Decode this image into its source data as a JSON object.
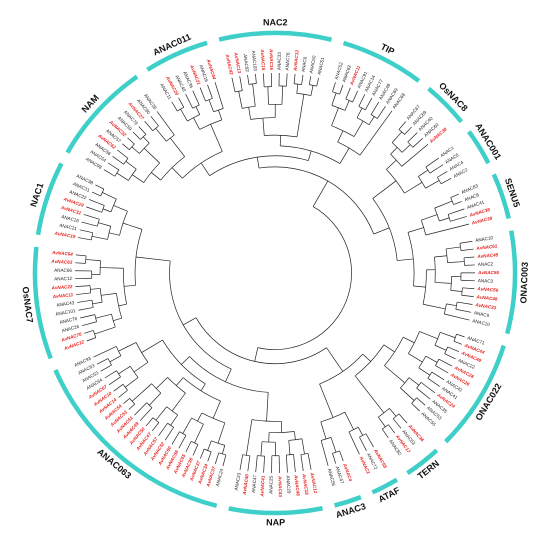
{
  "colors": {
    "background": "#ffffff",
    "branch": "#222222",
    "clade_arc": "#3ecfc8",
    "label_default": "#222222",
    "label_highlight": "#e8231f",
    "clade_text": "#111111"
  },
  "tree": {
    "clades": [
      {
        "name": "NAM",
        "tips": [
          {
            "label": "ANAC98",
            "highlight": false
          },
          {
            "label": "ANAC54",
            "highlight": false
          },
          {
            "label": "ANAC56",
            "highlight": false
          },
          {
            "label": "AvNAC62",
            "highlight": true
          },
          {
            "label": "ANAC57",
            "highlight": false
          },
          {
            "label": "AvNAC32",
            "highlight": true
          },
          {
            "label": "ANAC59",
            "highlight": false
          },
          {
            "label": "ANAC79",
            "highlight": false
          },
          {
            "label": "AvNAC27",
            "highlight": true
          },
          {
            "label": "ANAC80",
            "highlight": false
          },
          {
            "label": "ANAC28",
            "highlight": false
          }
        ]
      },
      {
        "name": "ANAC011",
        "tips": [
          {
            "label": "ANAC11",
            "highlight": false
          },
          {
            "label": "AvNAC20",
            "highlight": true
          },
          {
            "label": "ANAC48",
            "highlight": false
          },
          {
            "label": "ANAC36",
            "highlight": false
          },
          {
            "label": "AvNAC21",
            "highlight": true
          },
          {
            "label": "ANAC16",
            "highlight": false
          },
          {
            "label": "AvNAC44",
            "highlight": true
          }
        ]
      },
      {
        "name": "NAC2",
        "tips": [
          {
            "label": "AvNAC42",
            "highlight": true
          },
          {
            "label": "AvNAC13",
            "highlight": true
          },
          {
            "label": "ANAC92",
            "highlight": false
          },
          {
            "label": "ANAC103",
            "highlight": false
          },
          {
            "label": "AvNAC15",
            "highlight": true
          },
          {
            "label": "AvNAC16",
            "highlight": true
          },
          {
            "label": "ANAC33",
            "highlight": false
          },
          {
            "label": "ANAC78",
            "highlight": false
          },
          {
            "label": "AvNAC13",
            "highlight": true
          },
          {
            "label": "ANAC6",
            "highlight": false
          },
          {
            "label": "ANAC50",
            "highlight": false
          },
          {
            "label": "ANAC51",
            "highlight": false
          }
        ]
      },
      {
        "name": "TIP",
        "tips": [
          {
            "label": "ANAC52",
            "highlight": false
          },
          {
            "label": "ANAC62",
            "highlight": false
          },
          {
            "label": "AvNAC11",
            "highlight": true
          },
          {
            "label": "ANAC91",
            "highlight": false
          },
          {
            "label": "ANAC14",
            "highlight": false
          },
          {
            "label": "ANAC77",
            "highlight": false
          },
          {
            "label": "ANAC49",
            "highlight": false
          },
          {
            "label": "ANAC69",
            "highlight": false
          },
          {
            "label": "ANAC68",
            "highlight": false
          }
        ]
      },
      {
        "name": "OsNAC8",
        "tips": [
          {
            "label": "ANAC67",
            "highlight": false
          },
          {
            "label": "ANAC89",
            "highlight": false
          },
          {
            "label": "ANAC40",
            "highlight": false
          },
          {
            "label": "ANAC60",
            "highlight": false
          },
          {
            "label": "AvNAC30",
            "highlight": true
          }
        ]
      },
      {
        "name": "ANAC001",
        "tips": [
          {
            "label": "ANAC1",
            "highlight": false
          },
          {
            "label": "ANAC5",
            "highlight": false
          },
          {
            "label": "ANAC4",
            "highlight": false
          },
          {
            "label": "ANAC2",
            "highlight": false
          }
        ]
      },
      {
        "name": "SENU5",
        "tips": [
          {
            "label": "ANAC83",
            "highlight": false
          },
          {
            "label": "ANAC8",
            "highlight": false
          },
          {
            "label": "ANAC41",
            "highlight": false
          },
          {
            "label": "AvNAC38",
            "highlight": true
          },
          {
            "label": "AvNAC39",
            "highlight": true
          }
        ]
      },
      {
        "name": "ONAC003",
        "tips": [
          {
            "label": "ANAC10",
            "highlight": false
          },
          {
            "label": "AvNAC61",
            "highlight": true
          },
          {
            "label": "AvNAC45",
            "highlight": true
          },
          {
            "label": "ANAC2",
            "highlight": false
          },
          {
            "label": "AvNAC55",
            "highlight": true
          },
          {
            "label": "ANAC3",
            "highlight": false
          },
          {
            "label": "AvNAC56",
            "highlight": true
          },
          {
            "label": "AvNAC48",
            "highlight": true
          },
          {
            "label": "AvNAC33",
            "highlight": true
          },
          {
            "label": "ANAC9",
            "highlight": false
          },
          {
            "label": "ANAC10",
            "highlight": false
          }
        ]
      },
      {
        "name": "ONAC022",
        "tips": [
          {
            "label": "ANAC71",
            "highlight": false
          },
          {
            "label": "AvNAC44",
            "highlight": true
          },
          {
            "label": "AvNAC49",
            "highlight": true
          },
          {
            "label": "ANAC22",
            "highlight": false
          },
          {
            "label": "AvNAC28",
            "highlight": true
          },
          {
            "label": "AvNAC26",
            "highlight": true
          },
          {
            "label": "ANAC42",
            "highlight": false
          },
          {
            "label": "ANAC41",
            "highlight": false
          },
          {
            "label": "AvNAC24",
            "highlight": true
          },
          {
            "label": "ANAC35",
            "highlight": false
          },
          {
            "label": "ANAC53",
            "highlight": false
          },
          {
            "label": "ANAC55",
            "highlight": false
          }
        ]
      },
      {
        "name": "TERN",
        "tips": [
          {
            "label": "AvNAC36",
            "highlight": true
          },
          {
            "label": "ANAC53",
            "highlight": false
          },
          {
            "label": "AvNAC17",
            "highlight": true
          },
          {
            "label": "ANAC82",
            "highlight": false
          }
        ]
      },
      {
        "name": "ATAF",
        "tips": [
          {
            "label": "AvNAC58",
            "highlight": true
          },
          {
            "label": "ANAC72",
            "highlight": false
          },
          {
            "label": "AvNAC2",
            "highlight": true
          }
        ]
      },
      {
        "name": "ANAC3",
        "tips": [
          {
            "label": "AvNAC4",
            "highlight": true
          },
          {
            "label": "ANAC47",
            "highlight": false
          },
          {
            "label": "ANAC56",
            "highlight": false
          }
        ]
      },
      {
        "name": "NAP",
        "tips": [
          {
            "label": "AvNAC12",
            "highlight": true
          },
          {
            "label": "AvNAC18",
            "highlight": true
          },
          {
            "label": "AvNAC46",
            "highlight": true
          },
          {
            "label": "ANAC29",
            "highlight": false
          },
          {
            "label": "AvNAC43",
            "highlight": true
          },
          {
            "label": "ANAC25",
            "highlight": false
          },
          {
            "label": "AvNAC41",
            "highlight": true
          },
          {
            "label": "ANAC47",
            "highlight": false
          },
          {
            "label": "AvNAC40",
            "highlight": true
          },
          {
            "label": "ANAC23",
            "highlight": false
          }
        ]
      },
      {
        "name": "ANAC063",
        "tips": [
          {
            "label": "ANAC24",
            "highlight": false
          },
          {
            "label": "AvNAC37",
            "highlight": true
          },
          {
            "label": "AvNAC34",
            "highlight": true
          },
          {
            "label": "AvNAC37",
            "highlight": true
          },
          {
            "label": "AvNAC36",
            "highlight": true
          },
          {
            "label": "AvNAC55",
            "highlight": true
          },
          {
            "label": "AvNAC59",
            "highlight": true
          },
          {
            "label": "AvNAC60",
            "highlight": true
          },
          {
            "label": "AvNAC52",
            "highlight": true
          },
          {
            "label": "AvNAC57",
            "highlight": true
          },
          {
            "label": "AvNAC47",
            "highlight": true
          },
          {
            "label": "AvNAC50",
            "highlight": true
          },
          {
            "label": "AvNAC49",
            "highlight": true
          },
          {
            "label": "AvNAC51",
            "highlight": true
          },
          {
            "label": "AvNAC53",
            "highlight": true
          },
          {
            "label": "AvNAC54",
            "highlight": true
          },
          {
            "label": "AvNAC14",
            "highlight": true
          },
          {
            "label": "AvNAC10",
            "highlight": true
          },
          {
            "label": "AvNAC67",
            "highlight": true
          },
          {
            "label": "ANAC64",
            "highlight": false
          },
          {
            "label": "ANAC53",
            "highlight": false
          },
          {
            "label": "ANAC63",
            "highlight": false
          },
          {
            "label": "ANAC93",
            "highlight": false
          }
        ]
      },
      {
        "name": "OsNAC7",
        "tips": [
          {
            "label": "AvNAC12",
            "highlight": true
          },
          {
            "label": "AvNAC70",
            "highlight": true
          },
          {
            "label": "ANAC26",
            "highlight": false
          },
          {
            "label": "ANAC76",
            "highlight": false
          },
          {
            "label": "ANAC101",
            "highlight": false
          },
          {
            "label": "ANAC43",
            "highlight": false
          },
          {
            "label": "AvNAC11",
            "highlight": true
          },
          {
            "label": "AvNAC22",
            "highlight": true
          },
          {
            "label": "ANAC12",
            "highlight": false
          },
          {
            "label": "ANAC66",
            "highlight": false
          },
          {
            "label": "AvNAC63",
            "highlight": true
          },
          {
            "label": "AvNAC64",
            "highlight": true
          }
        ]
      },
      {
        "name": "NAC1",
        "tips": [
          {
            "label": "AvNAC19",
            "highlight": true
          },
          {
            "label": "ANAC21",
            "highlight": false
          },
          {
            "label": "ANAC18",
            "highlight": false
          },
          {
            "label": "AvNAC31",
            "highlight": true
          },
          {
            "label": "AvNAC29",
            "highlight": true
          },
          {
            "label": "ANAC22",
            "highlight": false
          },
          {
            "label": "ANAC31",
            "highlight": false
          },
          {
            "label": "ANAC38",
            "highlight": false
          }
        ]
      }
    ]
  }
}
